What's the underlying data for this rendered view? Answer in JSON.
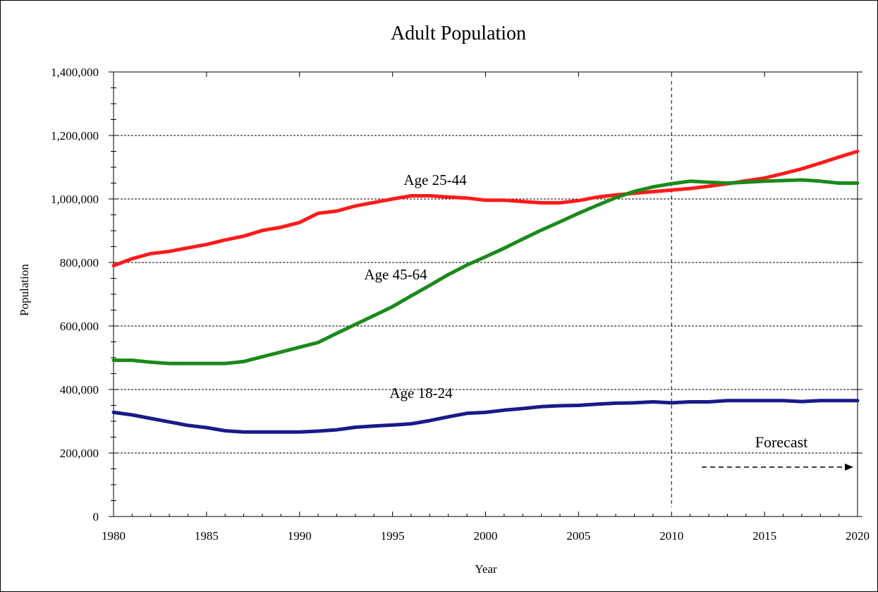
{
  "chart_data": {
    "type": "line",
    "title": "Adult Population",
    "xlabel": "Year",
    "ylabel": "Population",
    "xlim": [
      1980,
      2020
    ],
    "ylim": [
      0,
      1400000
    ],
    "x_ticks": [
      "1980",
      "1985",
      "1990",
      "1995",
      "2000",
      "2005",
      "2010",
      "2015",
      "2020"
    ],
    "y_ticks": [
      "0",
      "200,000",
      "400,000",
      "600,000",
      "800,000",
      "1,000,000",
      "1,200,000",
      "1,400,000"
    ],
    "grid": "horizontal dashed",
    "forecast_start": 2010,
    "forecast_label": "Forecast",
    "x": [
      1980,
      1981,
      1982,
      1983,
      1984,
      1985,
      1986,
      1987,
      1988,
      1989,
      1990,
      1991,
      1992,
      1993,
      1994,
      1995,
      1996,
      1997,
      1998,
      1999,
      2000,
      2001,
      2002,
      2003,
      2004,
      2005,
      2006,
      2007,
      2008,
      2009,
      2010,
      2011,
      2012,
      2013,
      2014,
      2015,
      2016,
      2017,
      2018,
      2019,
      2020
    ],
    "series": [
      {
        "name": "Age 25-44",
        "color": "#ff1a1a",
        "values": [
          790000,
          812000,
          828000,
          835000,
          846000,
          857000,
          871000,
          883000,
          901000,
          911000,
          926000,
          955000,
          962000,
          978000,
          989000,
          1000000,
          1010000,
          1010000,
          1006000,
          1003000,
          996000,
          996000,
          992000,
          988000,
          988000,
          995000,
          1006000,
          1013000,
          1018000,
          1023000,
          1028000,
          1033000,
          1040000,
          1048000,
          1057000,
          1066000,
          1080000,
          1095000,
          1113000,
          1132000,
          1150000
        ]
      },
      {
        "name": "Age 45-64",
        "color": "#1a8a1a",
        "values": [
          492000,
          492000,
          486000,
          482000,
          482000,
          482000,
          482000,
          488000,
          503000,
          518000,
          533000,
          548000,
          577000,
          605000,
          633000,
          661000,
          695000,
          728000,
          762000,
          792000,
          818000,
          845000,
          874000,
          902000,
          928000,
          955000,
          980000,
          1004000,
          1024000,
          1038000,
          1048000,
          1056000,
          1053000,
          1050000,
          1053000,
          1056000,
          1058000,
          1060000,
          1056000,
          1050000,
          1050000
        ]
      },
      {
        "name": "Age 18-24",
        "color": "#1a1a8c",
        "values": [
          328000,
          320000,
          309000,
          298000,
          287000,
          280000,
          270000,
          266000,
          266000,
          266000,
          266000,
          269000,
          273000,
          281000,
          285000,
          288000,
          292000,
          302000,
          314000,
          325000,
          328000,
          335000,
          340000,
          346000,
          349000,
          350000,
          354000,
          357000,
          358000,
          361000,
          358000,
          361000,
          361000,
          365000,
          365000,
          365000,
          365000,
          362000,
          365000,
          365000,
          365000
        ]
      }
    ]
  }
}
